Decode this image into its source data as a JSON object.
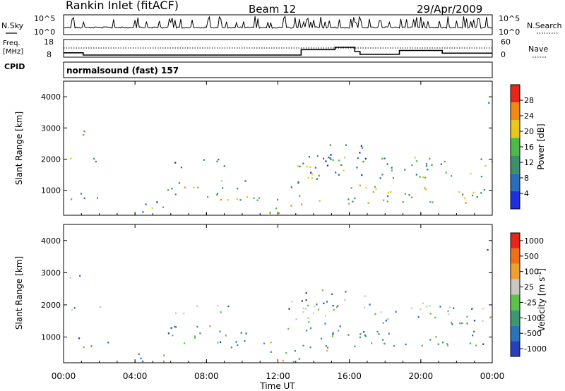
{
  "header": {
    "station": "Rankin Inlet (fitACF)",
    "beam": "Beam 12",
    "date": "29/Apr/2009"
  },
  "chart_data": [
    {
      "type": "line",
      "panel": "noise",
      "left_label": "N.Sky",
      "right_label": "N.Search",
      "left_ticks": [
        "10^5",
        "10^0"
      ],
      "right_ticks": [
        "10^5",
        "10^0"
      ]
    },
    {
      "type": "line",
      "panel": "frequency",
      "left_label_line1": "Freq.",
      "left_label_line2": "[MHz]",
      "right_label": "Nave",
      "left_ticks": [
        "18",
        "8"
      ],
      "right_ticks": [
        "60",
        "0"
      ],
      "freq_segments": [
        {
          "x": [
            0,
            1.1
          ],
          "y": 10.5
        },
        {
          "x": [
            1.1,
            13.3
          ],
          "y": 9.2
        },
        {
          "x": [
            13.3,
            15.2
          ],
          "y": 12.3
        },
        {
          "x": [
            15.2,
            16.3
          ],
          "y": 13.6
        },
        {
          "x": [
            16.3,
            16.6
          ],
          "y": 11.2
        },
        {
          "x": [
            16.6,
            18.8
          ],
          "y": 9.6
        },
        {
          "x": [
            18.8,
            21.2
          ],
          "y": 11.8
        },
        {
          "x": [
            21.2,
            24
          ],
          "y": 10.3
        }
      ],
      "cpid_label": "CPID",
      "mode": "normalsound (fast) 157"
    },
    {
      "type": "heatmap",
      "panel": "power",
      "ylabel": "Slant Range [km]",
      "yticks": [
        "1000",
        "2000",
        "3000",
        "4000"
      ],
      "ylim": [
        200,
        4500
      ],
      "colorbar_label": "Power [dB]",
      "colorbar_ticks": [
        "4",
        "8",
        "12",
        "16",
        "20",
        "24",
        "28"
      ],
      "colors": [
        "#1d2fe0",
        "#2a6ebb",
        "#3f8f6a",
        "#4fb84a",
        "#e8c818",
        "#f08a14",
        "#e8251b"
      ]
    },
    {
      "type": "heatmap",
      "panel": "velocity",
      "ylabel": "Slant Range [km]",
      "yticks": [
        "1000",
        "2000",
        "3000",
        "4000"
      ],
      "ylim": [
        200,
        4500
      ],
      "colorbar_label": "Velocity [m s^-1]",
      "colorbar_ticks": [
        "1000",
        "500",
        "100",
        "25",
        "-25",
        "-100",
        "-500",
        "-1000"
      ],
      "colors": [
        "#2a3fc0",
        "#2a74b8",
        "#3d9870",
        "#5cc24a",
        "#c8c8c0",
        "#f0a030",
        "#f07018",
        "#e8251b"
      ],
      "xlabel": "Time UT",
      "xticks": [
        "00:00",
        "04:00",
        "08:00",
        "12:00",
        "16:00",
        "20:00",
        "00:00"
      ],
      "xlim": [
        0,
        24
      ]
    }
  ]
}
